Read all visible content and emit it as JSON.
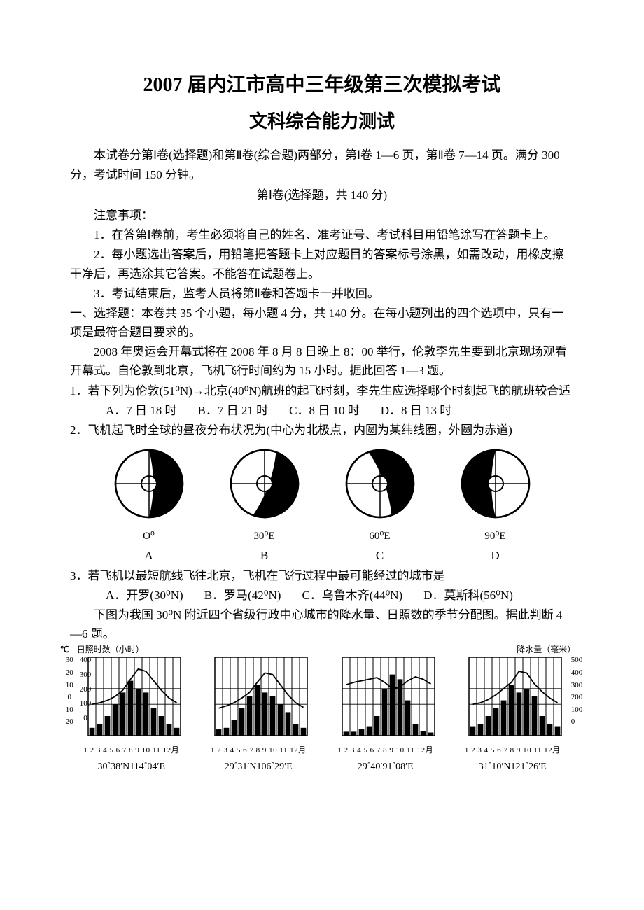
{
  "title": {
    "main": "2007 届内江市高中三年级第三次模拟考试",
    "sub": "文科综合能力测试"
  },
  "intro": {
    "p1": "本试卷分第Ⅰ卷(选择题)和第Ⅱ卷(综合题)两部分，第Ⅰ卷 1—6 页，第Ⅱ卷 7—14 页。满分 300 分，考试时间 150 分钟。",
    "section": "第Ⅰ卷(选择题，共 140 分)",
    "notice": "注意事项：",
    "n1": "1．在答第Ⅰ卷前，考生必须将自己的姓名、准考证号、考试科目用铅笔涂写在答题卡上。",
    "n2": "2．每小题选出答案后，用铅笔把答题卡上对应题目的答案标号涂黑，如需改动，用橡皮擦干净后，再选涂其它答案。不能答在试题卷上。",
    "n3": "3．考试结束后，监考人员将第Ⅱ卷和答题卡一并收回。"
  },
  "mc_header": "一、选择题：本卷共 35 个小题，每小题 4 分，共 140 分。在每小题列出的四个选项中，只有一项是最符合题目要求的。",
  "passage1": "2008 年奥运会开幕式将在 2008 年 8 月 8 日晚上 8：00 举行，伦敦李先生要到北京现场观看开幕式。自伦敦到北京，飞机飞行时间约为 15 小时。据此回答 1—3 题。",
  "q1": {
    "text": "1．若下列为伦敦(51⁰N)→北京(40⁰N)航班的起飞时刻，李先生应选择哪个时刻起飞的航班较合适",
    "a": "A．7 日 18 时",
    "b": "B．7 日 21 时",
    "c": "C．8 日 10 时",
    "d": "D．8 日 13 时"
  },
  "q2": {
    "text": "2．飞机起飞时全球的昼夜分布状况为(中心为北极点，内圆为某纬线圈，外圆为赤道)",
    "diagrams": [
      {
        "longitude": "O⁰",
        "letter": "A",
        "dark_rotation": 0
      },
      {
        "longitude": "30⁰E",
        "letter": "B",
        "dark_rotation": 20
      },
      {
        "longitude": "60⁰E",
        "letter": "C",
        "dark_rotation": -20
      },
      {
        "longitude": "90⁰E",
        "letter": "D",
        "dark_rotation": 180
      }
    ]
  },
  "q3": {
    "text": "3．若飞机以最短航线飞往北京，飞机在飞行过程中最可能经过的城市是",
    "a": "A．开罗(30⁰N)",
    "b": "B．罗马(42⁰N)",
    "c": "C．乌鲁木齐(44⁰N)",
    "d": "D．莫斯科(56⁰N)"
  },
  "passage2": "下图为我国 30⁰N 附近四个省级行政中心城市的降水量、日照数的季节分配图。据此判断 4—6 题。",
  "charts": {
    "axis_title_c": "℃",
    "axis_title_sun": "日照时数（小时）",
    "axis_title_rain": "降水量（毫米）",
    "temp_ticks": [
      "30",
      "20",
      "10",
      "0",
      "10",
      "20"
    ],
    "sun_ticks": [
      "400",
      "300",
      "200",
      "100",
      "0"
    ],
    "rain_ticks": [
      "500",
      "400",
      "300",
      "200",
      "100",
      "0"
    ],
    "months": "1 2 3 4 5 6 7 8 9 10 11 12月",
    "bar_color": "#000000",
    "line_color": "#000000",
    "grid_color": "#000000",
    "background_color": "#ffffff",
    "panels": [
      {
        "coord": "30˚38′N114˚04′E",
        "bars": [
          10,
          15,
          25,
          40,
          55,
          70,
          60,
          55,
          35,
          25,
          15,
          10
        ],
        "line": [
          40,
          42,
          45,
          50,
          58,
          72,
          85,
          82,
          70,
          58,
          48,
          42
        ]
      },
      {
        "coord": "29˚31′N106˚29′E",
        "bars": [
          8,
          10,
          20,
          35,
          50,
          65,
          55,
          50,
          40,
          30,
          15,
          10
        ],
        "line": [
          35,
          38,
          42,
          48,
          55,
          68,
          80,
          78,
          65,
          52,
          42,
          36
        ]
      },
      {
        "coord": "29˚40′91˚08′E",
        "bars": [
          5,
          5,
          8,
          12,
          25,
          60,
          78,
          72,
          45,
          15,
          6,
          4
        ],
        "line": [
          65,
          68,
          70,
          72,
          74,
          68,
          60,
          62,
          70,
          75,
          72,
          66
        ]
      },
      {
        "coord": "31˚10′N121˚26′E",
        "bars": [
          12,
          15,
          25,
          35,
          45,
          65,
          55,
          60,
          50,
          25,
          15,
          12
        ],
        "line": [
          40,
          42,
          46,
          52,
          60,
          68,
          82,
          80,
          66,
          56,
          48,
          42
        ]
      }
    ]
  }
}
